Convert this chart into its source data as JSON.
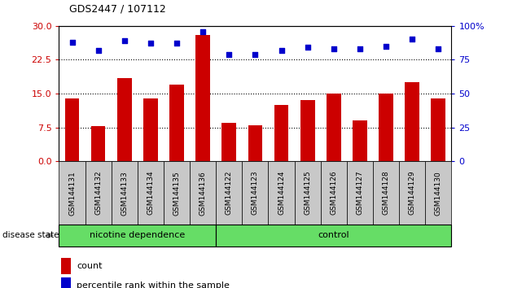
{
  "title": "GDS2447 / 107112",
  "categories": [
    "GSM144131",
    "GSM144132",
    "GSM144133",
    "GSM144134",
    "GSM144135",
    "GSM144136",
    "GSM144122",
    "GSM144123",
    "GSM144124",
    "GSM144125",
    "GSM144126",
    "GSM144127",
    "GSM144128",
    "GSM144129",
    "GSM144130"
  ],
  "bar_values": [
    14.0,
    7.8,
    18.5,
    14.0,
    17.0,
    28.0,
    8.5,
    8.0,
    12.5,
    13.5,
    15.0,
    9.0,
    15.0,
    17.5,
    14.0
  ],
  "percentile_values": [
    88,
    82,
    89,
    87,
    87,
    96,
    79,
    79,
    82,
    84,
    83,
    83,
    85,
    90,
    83
  ],
  "bar_color": "#cc0000",
  "percentile_color": "#0000cc",
  "ylim_left": [
    0,
    30
  ],
  "ylim_right": [
    0,
    100
  ],
  "yticks_left": [
    0,
    7.5,
    15,
    22.5,
    30
  ],
  "yticks_right": [
    0,
    25,
    50,
    75,
    100
  ],
  "grid_lines": [
    7.5,
    15,
    22.5
  ],
  "nicotine_label": "nicotine dependence",
  "control_label": "control",
  "disease_state_label": "disease state",
  "legend_count_label": "count",
  "legend_percentile_label": "percentile rank within the sample",
  "green_color": "#66dd66",
  "gray_color": "#c8c8c8",
  "fig_bg": "#ffffff",
  "n_nicotine": 6,
  "n_control": 9
}
